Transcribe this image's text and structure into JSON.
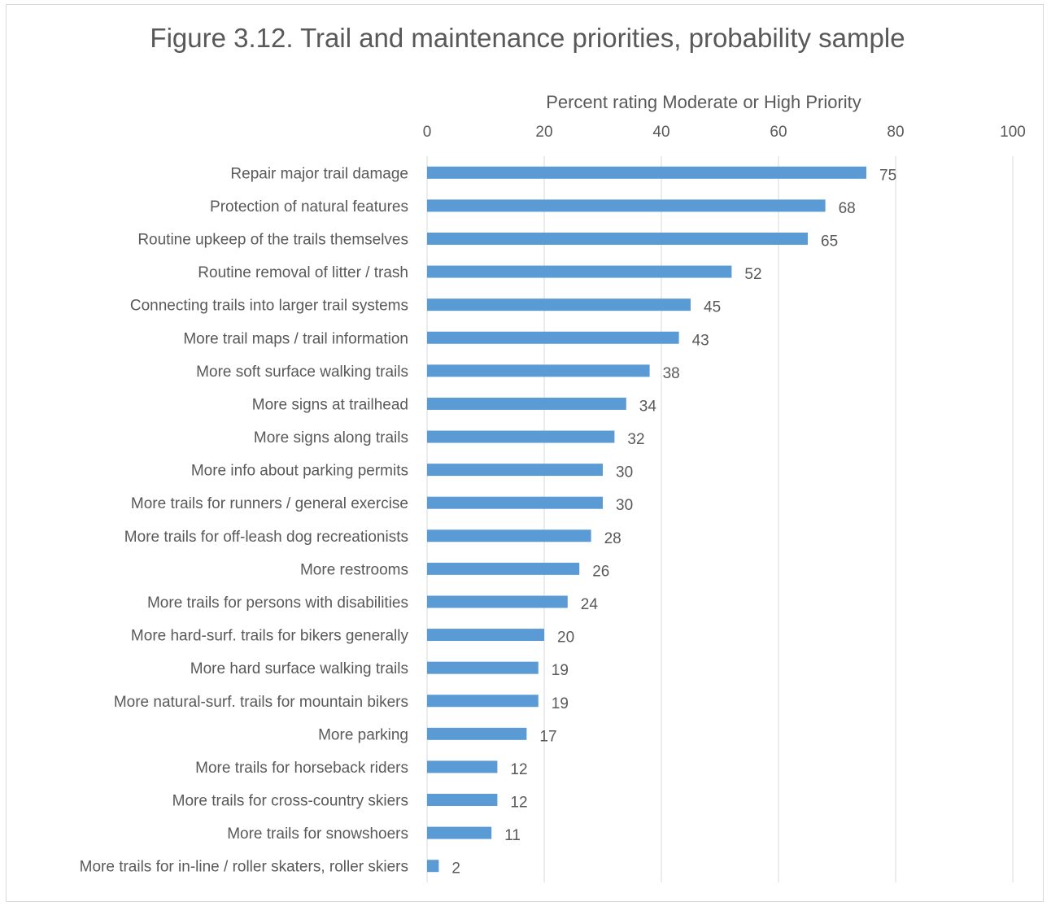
{
  "chart_data": {
    "type": "bar",
    "orientation": "horizontal",
    "title": "Figure 3.12. Trail and maintenance priorities, probability sample",
    "xlabel": "Percent rating Moderate or High Priority",
    "ylabel": "",
    "xlim": [
      0,
      100
    ],
    "x_ticks": [
      0,
      20,
      40,
      60,
      80,
      100
    ],
    "x_axis_position": "top",
    "grid": true,
    "legend": "none",
    "bar_color": "#5B9BD5",
    "categories": [
      "Repair major trail damage",
      "Protection of natural features",
      "Routine upkeep of the trails themselves",
      "Routine removal of litter / trash",
      "Connecting trails into larger trail systems",
      "More trail maps / trail information",
      "More soft surface walking trails",
      "More signs at trailhead",
      "More signs along trails",
      "More info about parking permits",
      "More trails for runners / general exercise",
      "More trails for off-leash dog recreationists",
      "More restrooms",
      "More trails for persons with disabilities",
      "More hard-surf. trails for bikers generally",
      "More hard surface walking trails",
      "More natural-surf. trails for mountain bikers",
      "More parking",
      "More trails for horseback riders",
      "More trails for cross-country skiers",
      "More trails for snowshoers",
      "More trails for in-line / roller skaters, roller skiers"
    ],
    "values": [
      75,
      68,
      65,
      52,
      45,
      43,
      38,
      34,
      32,
      30,
      30,
      28,
      26,
      24,
      20,
      19,
      19,
      17,
      12,
      12,
      11,
      2
    ]
  }
}
